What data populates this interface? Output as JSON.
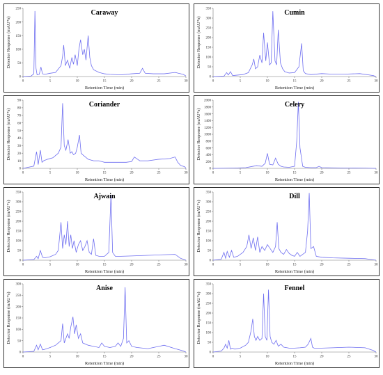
{
  "chart_data": [
    {
      "type": "line",
      "title": "Caraway",
      "xlabel": "Retention Time (min)",
      "ylabel": "Detector Response (mAU*s)",
      "xlim": [
        0,
        30
      ],
      "ylim": [
        0,
        250
      ],
      "xticks": [
        0,
        5,
        10,
        15,
        20,
        25,
        30
      ],
      "yticks": [
        0,
        50,
        100,
        150,
        200,
        250
      ],
      "x": [
        0,
        1.5,
        2.0,
        2.2,
        2.4,
        2.6,
        3.0,
        3.3,
        3.6,
        4.0,
        5.0,
        6.0,
        7.0,
        7.3,
        7.5,
        7.8,
        8.2,
        8.6,
        9.0,
        9.3,
        9.6,
        10.0,
        10.3,
        10.6,
        11.0,
        11.3,
        11.6,
        12.0,
        12.3,
        12.6,
        13.0,
        14.0,
        15.0,
        16.0,
        18.0,
        20.0,
        21.5,
        22.0,
        22.5,
        24.0,
        26.0,
        28.0,
        29.5,
        30
      ],
      "y": [
        0,
        2,
        10,
        240,
        30,
        6,
        8,
        35,
        10,
        8,
        12,
        15,
        40,
        75,
        115,
        40,
        60,
        30,
        70,
        45,
        80,
        40,
        100,
        135,
        80,
        100,
        60,
        150,
        70,
        40,
        25,
        15,
        10,
        8,
        6,
        10,
        12,
        30,
        12,
        10,
        10,
        15,
        8,
        2
      ]
    },
    {
      "type": "line",
      "title": "Cumin",
      "xlabel": "Retention Time (min)",
      "ylabel": "Detector Response (mAU*s)",
      "xlim": [
        0,
        30
      ],
      "ylim": [
        0,
        350
      ],
      "xticks": [
        0,
        5,
        10,
        15,
        20,
        25,
        30
      ],
      "yticks": [
        0,
        50,
        100,
        150,
        200,
        250,
        300,
        350
      ],
      "x": [
        0,
        2.0,
        2.5,
        2.8,
        3.2,
        3.6,
        4.0,
        5.5,
        6.5,
        7.2,
        7.5,
        7.8,
        8.2,
        8.6,
        9.0,
        9.3,
        9.7,
        10.0,
        10.4,
        10.7,
        11.0,
        11.4,
        11.7,
        12.0,
        12.4,
        12.8,
        13.2,
        14.0,
        15.0,
        15.8,
        16.3,
        16.6,
        17.0,
        18.0,
        20.0,
        22.0,
        24.0,
        27.0,
        29.5,
        30
      ],
      "y": [
        0,
        2,
        20,
        8,
        25,
        5,
        6,
        10,
        20,
        60,
        90,
        40,
        50,
        110,
        70,
        225,
        80,
        175,
        60,
        70,
        335,
        80,
        60,
        240,
        70,
        40,
        25,
        18,
        20,
        50,
        170,
        30,
        15,
        10,
        15,
        12,
        12,
        15,
        5,
        0
      ]
    },
    {
      "type": "line",
      "title": "Coriander",
      "xlabel": "Retention Time (min)",
      "ylabel": "Detector Response (mAU*s)",
      "xlim": [
        0,
        30
      ],
      "ylim": [
        0,
        90
      ],
      "xticks": [
        0,
        5,
        10,
        15,
        20,
        25,
        30
      ],
      "yticks": [
        0,
        10,
        20,
        30,
        40,
        50,
        60,
        70,
        80,
        90
      ],
      "x": [
        0,
        2.0,
        2.5,
        2.8,
        3.2,
        3.5,
        3.8,
        4.5,
        5.5,
        6.5,
        7.0,
        7.3,
        7.6,
        7.9,
        8.3,
        8.7,
        9.0,
        9.3,
        9.7,
        10.0,
        10.4,
        10.7,
        11.0,
        11.5,
        12.0,
        13.0,
        14.0,
        15.0,
        17.0,
        19.0,
        20.0,
        20.5,
        21.5,
        23.0,
        25.0,
        27.0,
        28.0,
        28.5,
        29.0,
        29.8,
        30
      ],
      "y": [
        0,
        3,
        22,
        5,
        24,
        8,
        10,
        12,
        14,
        20,
        28,
        86,
        30,
        24,
        38,
        20,
        22,
        18,
        20,
        28,
        44,
        20,
        18,
        15,
        12,
        10,
        10,
        8,
        8,
        8,
        9,
        15,
        10,
        10,
        12,
        13,
        15,
        8,
        4,
        2,
        0
      ]
    },
    {
      "type": "line",
      "title": "Celery",
      "xlabel": "Retention Time (min)",
      "ylabel": "Detector Response (mAU*s)",
      "xlim": [
        0,
        30
      ],
      "ylim": [
        0,
        2000
      ],
      "xticks": [
        0,
        5,
        10,
        15,
        20,
        25,
        30
      ],
      "yticks": [
        0,
        200,
        400,
        600,
        800,
        1000,
        1200,
        1400,
        1600,
        1800,
        2000
      ],
      "x": [
        0,
        2.0,
        4.0,
        6.0,
        7.0,
        8.0,
        9.0,
        9.6,
        10.0,
        10.4,
        11.0,
        11.5,
        12.0,
        12.5,
        13.0,
        14.0,
        15.0,
        15.4,
        15.7,
        16.0,
        16.5,
        17.0,
        18.0,
        19.0,
        19.5,
        20.0,
        22.0,
        25.0,
        28.0,
        30
      ],
      "y": [
        0,
        5,
        10,
        20,
        50,
        80,
        60,
        150,
        440,
        120,
        100,
        300,
        120,
        60,
        40,
        30,
        60,
        800,
        1950,
        600,
        60,
        30,
        20,
        20,
        60,
        20,
        15,
        10,
        8,
        0
      ]
    },
    {
      "type": "line",
      "title": "Ajwain",
      "xlabel": "Retention Time (min)",
      "ylabel": "Detector Response (mAU*s)",
      "xlim": [
        0,
        30
      ],
      "ylim": [
        0,
        350
      ],
      "xticks": [
        0,
        5,
        10,
        15,
        20,
        25,
        30
      ],
      "yticks": [
        0,
        50,
        100,
        150,
        200,
        250,
        300,
        350
      ],
      "x": [
        0,
        2.0,
        2.5,
        2.8,
        3.2,
        3.6,
        4.0,
        5.0,
        6.0,
        6.5,
        7.0,
        7.3,
        7.6,
        7.9,
        8.2,
        8.5,
        8.8,
        9.1,
        9.4,
        9.8,
        10.2,
        10.6,
        11.0,
        11.4,
        11.8,
        12.2,
        12.6,
        13.0,
        13.4,
        14.0,
        15.0,
        15.8,
        16.2,
        16.5,
        17.0,
        18.0,
        20.0,
        23.0,
        26.0,
        28.0,
        29.0,
        30
      ],
      "y": [
        0,
        3,
        20,
        8,
        50,
        15,
        12,
        18,
        30,
        50,
        195,
        60,
        130,
        80,
        200,
        70,
        130,
        60,
        100,
        40,
        80,
        100,
        50,
        70,
        100,
        40,
        30,
        110,
        25,
        20,
        20,
        40,
        335,
        40,
        20,
        20,
        22,
        25,
        28,
        30,
        10,
        0
      ]
    },
    {
      "type": "line",
      "title": "Dill",
      "xlabel": "Retention Time (min)",
      "ylabel": "Detector Response (mAU*s)",
      "xlim": [
        0,
        30
      ],
      "ylim": [
        0,
        350
      ],
      "xticks": [
        0,
        5,
        10,
        15,
        20,
        25,
        30
      ],
      "yticks": [
        0,
        50,
        100,
        150,
        200,
        250,
        300,
        350
      ],
      "x": [
        0,
        1.5,
        2.0,
        2.3,
        2.6,
        3.0,
        3.4,
        3.8,
        4.5,
        5.5,
        6.2,
        6.6,
        7.0,
        7.4,
        7.8,
        8.2,
        8.6,
        9.0,
        9.5,
        10.0,
        10.5,
        11.0,
        11.5,
        11.8,
        12.1,
        12.5,
        13.0,
        13.5,
        14.0,
        14.5,
        15.0,
        15.5,
        16.0,
        16.5,
        17.0,
        17.4,
        17.7,
        18.0,
        18.5,
        19.0,
        20.0,
        22.0,
        25.0,
        28.0,
        30
      ],
      "y": [
        0,
        5,
        40,
        10,
        45,
        15,
        50,
        15,
        20,
        40,
        70,
        130,
        60,
        115,
        50,
        120,
        40,
        70,
        50,
        80,
        60,
        40,
        70,
        195,
        60,
        40,
        30,
        55,
        35,
        25,
        20,
        40,
        20,
        30,
        40,
        150,
        345,
        60,
        70,
        20,
        15,
        12,
        10,
        8,
        0
      ]
    },
    {
      "type": "line",
      "title": "Anise",
      "xlabel": "Retention Time (min)",
      "ylabel": "Detector Response (mAU*s)",
      "xlim": [
        0,
        30
      ],
      "ylim": [
        0,
        300
      ],
      "xticks": [
        0,
        5,
        10,
        15,
        20,
        25,
        30
      ],
      "yticks": [
        0,
        50,
        100,
        150,
        200,
        250,
        300
      ],
      "x": [
        0,
        2.0,
        2.5,
        2.8,
        3.2,
        3.6,
        4.0,
        5.0,
        6.0,
        6.5,
        7.0,
        7.3,
        7.6,
        7.9,
        8.2,
        8.5,
        8.8,
        9.2,
        9.5,
        9.8,
        10.2,
        10.6,
        11.0,
        12.0,
        13.0,
        14.0,
        14.5,
        15.0,
        16.0,
        17.0,
        17.5,
        18.0,
        18.5,
        18.8,
        19.1,
        19.5,
        20.0,
        21.0,
        23.0,
        25.0,
        26.0,
        28.0,
        29.5,
        30
      ],
      "y": [
        0,
        3,
        30,
        10,
        35,
        10,
        12,
        20,
        30,
        40,
        50,
        125,
        40,
        60,
        80,
        60,
        110,
        155,
        80,
        120,
        60,
        80,
        40,
        30,
        25,
        20,
        40,
        25,
        20,
        25,
        40,
        25,
        60,
        285,
        40,
        50,
        25,
        20,
        15,
        25,
        30,
        15,
        5,
        0
      ]
    },
    {
      "type": "line",
      "title": "Fennel",
      "xlabel": "Retention Time (min)",
      "ylabel": "Detector Response (mAU*s)",
      "xlim": [
        0,
        30
      ],
      "ylim": [
        0,
        350
      ],
      "xticks": [
        0,
        5,
        10,
        15,
        20,
        25,
        30
      ],
      "yticks": [
        0,
        50,
        100,
        150,
        200,
        250,
        300,
        350
      ],
      "x": [
        0,
        1.5,
        2.0,
        2.3,
        2.6,
        2.9,
        3.2,
        3.5,
        4.0,
        5.0,
        6.0,
        6.5,
        7.0,
        7.3,
        7.6,
        7.9,
        8.2,
        8.6,
        9.0,
        9.3,
        9.6,
        9.9,
        10.2,
        10.5,
        10.8,
        11.2,
        11.6,
        12.0,
        12.5,
        13.0,
        14.0,
        15.0,
        16.0,
        17.0,
        17.5,
        18.0,
        18.3,
        18.6,
        19.0,
        20.0,
        22.0,
        25.0,
        28.0,
        29.5,
        30
      ],
      "y": [
        0,
        5,
        20,
        40,
        20,
        60,
        15,
        20,
        15,
        20,
        35,
        50,
        110,
        170,
        80,
        60,
        80,
        60,
        70,
        300,
        80,
        60,
        320,
        80,
        50,
        40,
        60,
        30,
        40,
        25,
        20,
        20,
        22,
        25,
        40,
        70,
        25,
        20,
        20,
        20,
        22,
        25,
        22,
        8,
        0
      ]
    }
  ]
}
